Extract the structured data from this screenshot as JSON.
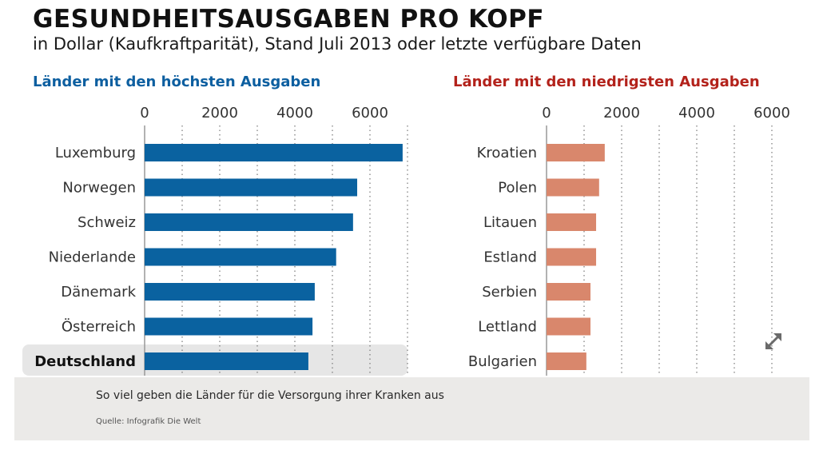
{
  "header": {
    "title": "GESUNDHEITSAUSGABEN PRO KOPF",
    "subtitle": "in Dollar (Kaufkraftparität), Stand Juli 2013 oder letzte verfügbare Daten"
  },
  "caption": {
    "text": "So viel geben die Länder für die Versorgung ihrer Kranken aus",
    "source": "Quelle: Infografik Die Welt"
  },
  "icons": {
    "expand": "expand-arrows-icon"
  },
  "colors": {
    "high": "#0a62a0",
    "low": "#d9876c",
    "highlight": "#e6e6e6",
    "high_title": "#0d5fa0",
    "low_title": "#b3221b"
  },
  "chart_data": [
    {
      "type": "bar",
      "orientation": "horizontal",
      "title": "Länder mit den höchsten Ausgaben",
      "xlabel": "",
      "ylabel": "",
      "xlim": [
        0,
        7000
      ],
      "ticks": [
        0,
        2000,
        4000,
        6000
      ],
      "tick_labels": [
        "0",
        "2000",
        "4000",
        "6000"
      ],
      "grid": "dotted every 1000",
      "categories": [
        "Luxemburg",
        "Norwegen",
        "Schweiz",
        "Niederlande",
        "Dänemark",
        "Österreich",
        "Deutschland"
      ],
      "values": [
        6870,
        5660,
        5550,
        5100,
        4530,
        4470,
        4360
      ],
      "highlight": "Deutschland"
    },
    {
      "type": "bar",
      "orientation": "horizontal",
      "title": "Länder mit den niedrigsten Ausgaben",
      "xlabel": "",
      "ylabel": "",
      "xlim": [
        0,
        6000
      ],
      "ticks": [
        0,
        2000,
        4000,
        6000
      ],
      "tick_labels": [
        "0",
        "2000",
        "4000",
        "6000"
      ],
      "grid": "dotted every 1000",
      "categories": [
        "Kroatien",
        "Polen",
        "Litauen",
        "Estland",
        "Serbien",
        "Lettland",
        "Bulgarien"
      ],
      "values": [
        1550,
        1400,
        1320,
        1320,
        1170,
        1170,
        1060
      ],
      "highlight": null
    }
  ]
}
